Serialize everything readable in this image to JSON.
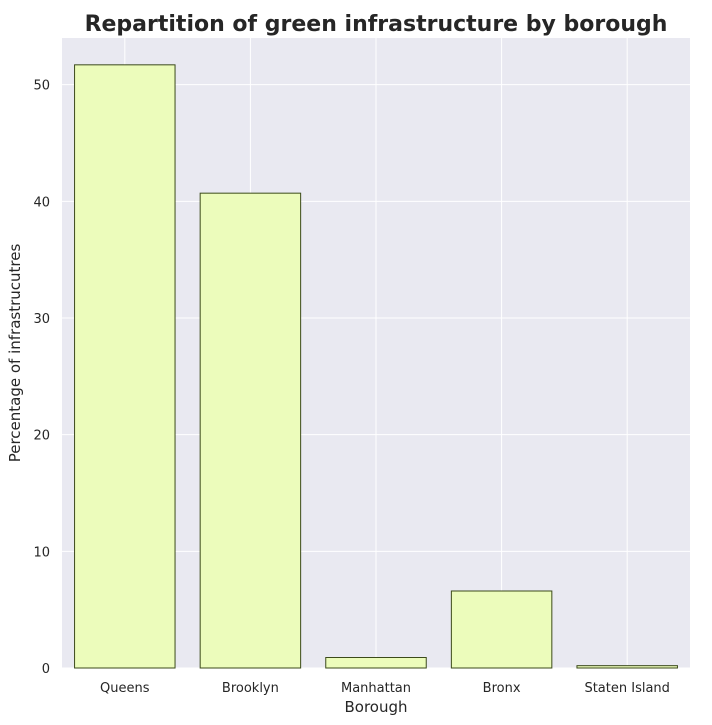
{
  "chart_data": {
    "type": "bar",
    "title": "Repartition of green infrastructure by borough",
    "xlabel": "Borough",
    "ylabel": "Percentage of infrastrucutres",
    "categories": [
      "Queens",
      "Brooklyn",
      "Manhattan",
      "Bronx",
      "Staten Island"
    ],
    "values": [
      51.7,
      40.7,
      0.9,
      6.6,
      0.2
    ],
    "ylim": [
      0,
      54
    ],
    "yticks": [
      0,
      10,
      20,
      30,
      40,
      50
    ],
    "grid": true,
    "colors": {
      "bar_fill": "#ecfcbb",
      "bar_edge": "#3b4a1a",
      "plot_background": "#e9e9f1",
      "grid": "#ffffff",
      "text": "#262626"
    }
  }
}
